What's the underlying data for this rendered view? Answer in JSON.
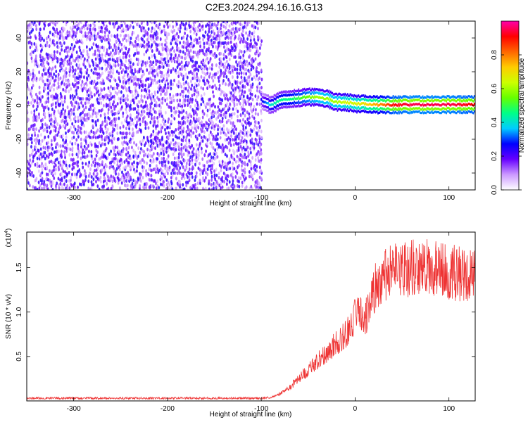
{
  "title": "C2E3.2024.294.16.16.G13",
  "chart_data": [
    {
      "type": "heatmap",
      "xlabel": "Height of straight line (km)",
      "ylabel": "Frequency (Hz)",
      "xlim": [
        -350,
        128
      ],
      "ylim": [
        -50,
        50
      ],
      "xticks": [
        -300,
        -200,
        -100,
        0,
        100
      ],
      "yticks": [
        -40,
        -20,
        0,
        20,
        40
      ],
      "colorbar": {
        "label": "Normalized spectral amplitude",
        "range": [
          0,
          1
        ],
        "ticks": [
          0.0,
          0.2,
          0.4,
          0.6,
          0.8
        ],
        "colors": [
          "#ffffff",
          "#cc99ff",
          "#6600ff",
          "#0000ff",
          "#00ccff",
          "#00ff88",
          "#66ff00",
          "#ccff00",
          "#ffcc00",
          "#ff6600",
          "#ff0000",
          "#ff00aa"
        ]
      },
      "noise_region": {
        "x": [
          -350,
          -100
        ],
        "amplitude": [
          0.05,
          0.25
        ]
      },
      "signal_track": {
        "x": [
          -100,
          -90,
          -80,
          -70,
          -60,
          -50,
          -40,
          -30,
          -20,
          -10,
          0,
          10,
          20,
          30,
          40,
          60,
          80,
          100,
          128
        ],
        "freq": [
          3,
          0,
          3,
          4,
          4.5,
          5,
          5,
          4,
          2,
          2,
          1,
          1,
          0.5,
          0.5,
          0.5,
          0.5,
          0.5,
          0.5,
          0.5
        ],
        "amplitude": [
          0.25,
          0.4,
          0.45,
          0.45,
          0.5,
          0.55,
          0.6,
          0.6,
          0.6,
          0.65,
          0.65,
          0.7,
          0.75,
          0.8,
          0.9,
          0.95,
          0.95,
          0.95,
          0.9
        ]
      }
    },
    {
      "type": "line",
      "xlabel": "Height of straight line (km)",
      "ylabel": "SNR (10 * v/v)",
      "scale_label": "(x10",
      "scale_exponent": "4",
      "xlim": [
        -350,
        128
      ],
      "ylim": [
        0,
        1.9
      ],
      "xticks": [
        -300,
        -200,
        -100,
        0,
        100
      ],
      "yticks": [
        0.5,
        1.0,
        1.5
      ],
      "series": [
        {
          "color": "#ee3333",
          "x": [
            -350,
            -300,
            -250,
            -200,
            -150,
            -100,
            -90,
            -80,
            -70,
            -60,
            -50,
            -40,
            -30,
            -20,
            -10,
            0,
            5,
            10,
            20,
            30,
            40,
            60,
            80,
            100,
            128
          ],
          "y": [
            0.03,
            0.03,
            0.03,
            0.03,
            0.03,
            0.03,
            0.04,
            0.08,
            0.15,
            0.25,
            0.35,
            0.45,
            0.55,
            0.65,
            0.75,
            0.95,
            1.05,
            0.9,
            1.25,
            1.4,
            1.45,
            1.5,
            1.5,
            1.45,
            1.4
          ]
        }
      ]
    }
  ]
}
